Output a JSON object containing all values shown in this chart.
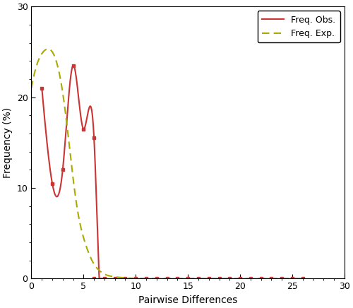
{
  "title": "",
  "xlabel": "Pairwise Differences",
  "ylabel": "Frequency (%)",
  "xlim": [
    0,
    30
  ],
  "ylim": [
    0,
    30
  ],
  "xticks": [
    0,
    5,
    10,
    15,
    20,
    25,
    30
  ],
  "yticks": [
    0,
    10,
    20,
    30
  ],
  "obs_x": [
    1,
    2,
    3,
    4,
    5,
    6,
    7,
    8,
    9,
    10,
    11,
    12,
    13,
    14,
    15,
    16,
    17,
    18,
    19,
    20,
    21,
    22,
    23,
    24,
    25,
    26
  ],
  "obs_y": [
    21.0,
    10.5,
    12.0,
    23.5,
    16.5,
    15.5,
    0.0,
    0.0,
    0.0,
    0.0,
    0.0,
    0.0,
    0.0,
    0.0,
    0.0,
    0.0,
    0.0,
    0.0,
    0.0,
    0.0,
    0.0,
    0.0,
    0.0,
    0.0,
    0.0,
    0.0
  ],
  "obs_color": "#cc3333",
  "exp_color": "#aaaa00",
  "obs_label": "Freq. Obs.",
  "exp_label": "Freq. Exp.",
  "background_color": "#ffffff",
  "legend_fontsize": 9,
  "axis_fontsize": 10,
  "tick_fontsize": 9,
  "exp_x_pts": [
    0,
    0.5,
    1.0,
    1.5,
    2.0,
    2.5,
    3.0,
    3.5,
    4.0,
    4.5,
    5.0,
    5.5,
    6.0,
    6.5,
    7.0,
    8.0,
    9.0,
    10.0,
    12.0,
    15.0,
    20.0,
    26.0
  ],
  "exp_y_pts": [
    21.0,
    23.5,
    24.8,
    25.3,
    25.0,
    23.5,
    20.5,
    16.0,
    11.0,
    7.0,
    4.5,
    2.8,
    1.6,
    0.9,
    0.5,
    0.2,
    0.08,
    0.03,
    0.005,
    0.001,
    0.0,
    0.0
  ]
}
